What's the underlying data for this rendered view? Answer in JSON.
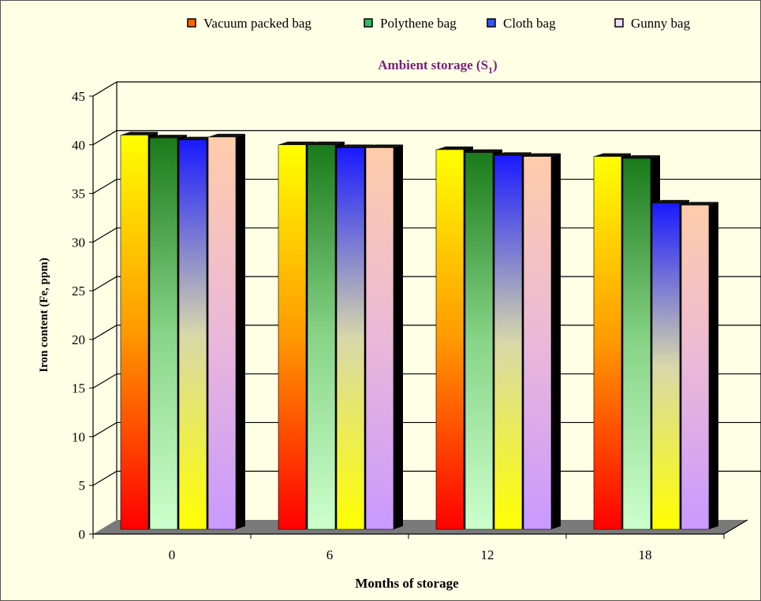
{
  "chart_data": {
    "type": "bar",
    "title_main": "Ambient storage (S",
    "title_sub": "1",
    "title_close": ")",
    "xlabel": "Months of storage",
    "ylabel": "Iron content (Fe, ppm)",
    "categories": [
      "0",
      "6",
      "12",
      "18"
    ],
    "yticks": [
      "0",
      "5",
      "10",
      "15",
      "20",
      "25",
      "30",
      "35",
      "40",
      "45"
    ],
    "ylim": [
      0,
      45
    ],
    "grid": true,
    "legend_position": "top",
    "legend_labels": [
      "Vacuum packed bag",
      "Polythene bag",
      "Cloth bag",
      "Gunny bag"
    ],
    "series": [
      {
        "values": [
          41.0,
          40.0,
          39.5,
          38.8
        ],
        "gradient": [
          "#ffff00",
          "#ff9900",
          "#ff0000"
        ],
        "legend_color": "#ff6600"
      },
      {
        "values": [
          40.7,
          40.0,
          39.2,
          38.6
        ],
        "gradient": [
          "#1a7a1a",
          "#88d488",
          "#ccffcc"
        ],
        "legend_color": "#33bb66"
      },
      {
        "values": [
          40.5,
          39.7,
          38.9,
          34.0
        ],
        "gradient": [
          "#1a1aff",
          "#d8d8aa",
          "#ffff00"
        ],
        "legend_color": "#3355ff"
      },
      {
        "values": [
          40.8,
          39.7,
          38.8,
          33.8
        ],
        "gradient": [
          "#ffccaa",
          "#eab8d8",
          "#c999ff"
        ],
        "legend_color": "#eeddff"
      }
    ]
  }
}
